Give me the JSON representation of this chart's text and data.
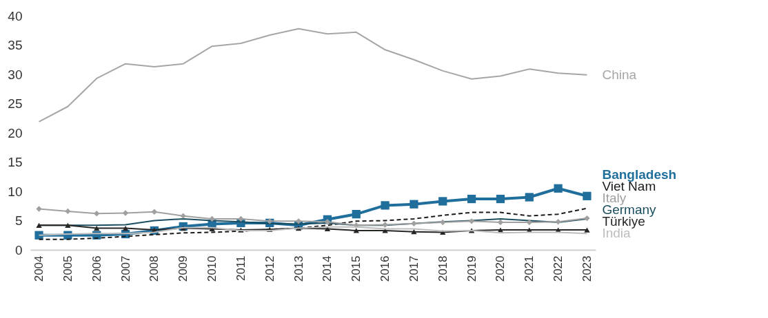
{
  "chart_data": {
    "type": "line",
    "categories": [
      "2004",
      "2005",
      "2006",
      "2007",
      "2008",
      "2009",
      "2010",
      "2011",
      "2012",
      "2013",
      "2014",
      "2015",
      "2016",
      "2017",
      "2018",
      "2019",
      "2020",
      "2021",
      "2022",
      "2023"
    ],
    "ylim": [
      0,
      40
    ],
    "yticks": [
      0,
      5,
      10,
      15,
      20,
      25,
      30,
      35,
      40
    ],
    "grid": false,
    "series": [
      {
        "name": "China",
        "color": "#a6a6a6",
        "marker": "none",
        "line_style": "solid",
        "values": [
          21.9,
          24.5,
          29.3,
          31.8,
          31.3,
          31.8,
          34.8,
          35.3,
          36.7,
          37.8,
          36.9,
          37.2,
          34.2,
          32.5,
          30.6,
          29.2,
          29.7,
          30.9,
          30.2,
          29.9
        ]
      },
      {
        "name": "Bangladesh",
        "color": "#1f6e9c",
        "marker": "square",
        "line_style": "solid",
        "values": [
          2.5,
          2.5,
          2.5,
          2.7,
          3.3,
          4.0,
          4.4,
          4.6,
          4.6,
          4.2,
          5.2,
          6.1,
          7.6,
          7.8,
          8.3,
          8.7,
          8.7,
          9.0,
          10.5,
          9.2
        ]
      },
      {
        "name": "Viet Nam",
        "color": "#1a1a1a",
        "marker": "none",
        "line_style": "dashed",
        "values": [
          1.8,
          1.8,
          2.0,
          2.3,
          2.6,
          2.9,
          3.0,
          3.2,
          3.5,
          3.7,
          4.2,
          4.9,
          5.0,
          5.3,
          5.9,
          6.4,
          6.4,
          5.8,
          6.1,
          7.1
        ]
      },
      {
        "name": "Germany",
        "color": "#1a4d5f",
        "marker": "none",
        "line_style": "solid",
        "values": [
          4.2,
          4.2,
          4.2,
          4.3,
          5.0,
          5.3,
          5.0,
          4.8,
          4.5,
          4.4,
          4.6,
          4.2,
          4.2,
          4.5,
          4.8,
          5.0,
          5.3,
          5.0,
          4.7,
          5.3
        ]
      },
      {
        "name": "Italy",
        "color": "#a0a0a0",
        "marker": "diamond",
        "line_style": "solid",
        "values": [
          7.0,
          6.6,
          6.2,
          6.3,
          6.5,
          5.8,
          5.3,
          5.3,
          4.9,
          4.9,
          4.8,
          4.2,
          4.3,
          4.5,
          4.7,
          4.9,
          4.7,
          4.7,
          4.8,
          5.4
        ]
      },
      {
        "name": "Türkiye",
        "color": "#262626",
        "marker": "triangle",
        "line_style": "solid",
        "values": [
          4.2,
          4.2,
          3.7,
          3.7,
          3.4,
          3.7,
          3.6,
          3.4,
          3.5,
          3.7,
          3.6,
          3.3,
          3.3,
          3.1,
          3.0,
          3.3,
          3.4,
          3.4,
          3.4,
          3.4
        ]
      },
      {
        "name": "India",
        "color": "#bdbdbd",
        "marker": "none",
        "line_style": "solid",
        "values": [
          2.5,
          2.7,
          2.8,
          2.8,
          3.0,
          3.8,
          3.8,
          3.3,
          3.3,
          3.7,
          3.9,
          3.9,
          3.6,
          3.6,
          3.2,
          3.3,
          2.9,
          3.0,
          3.0,
          2.8
        ]
      }
    ]
  }
}
